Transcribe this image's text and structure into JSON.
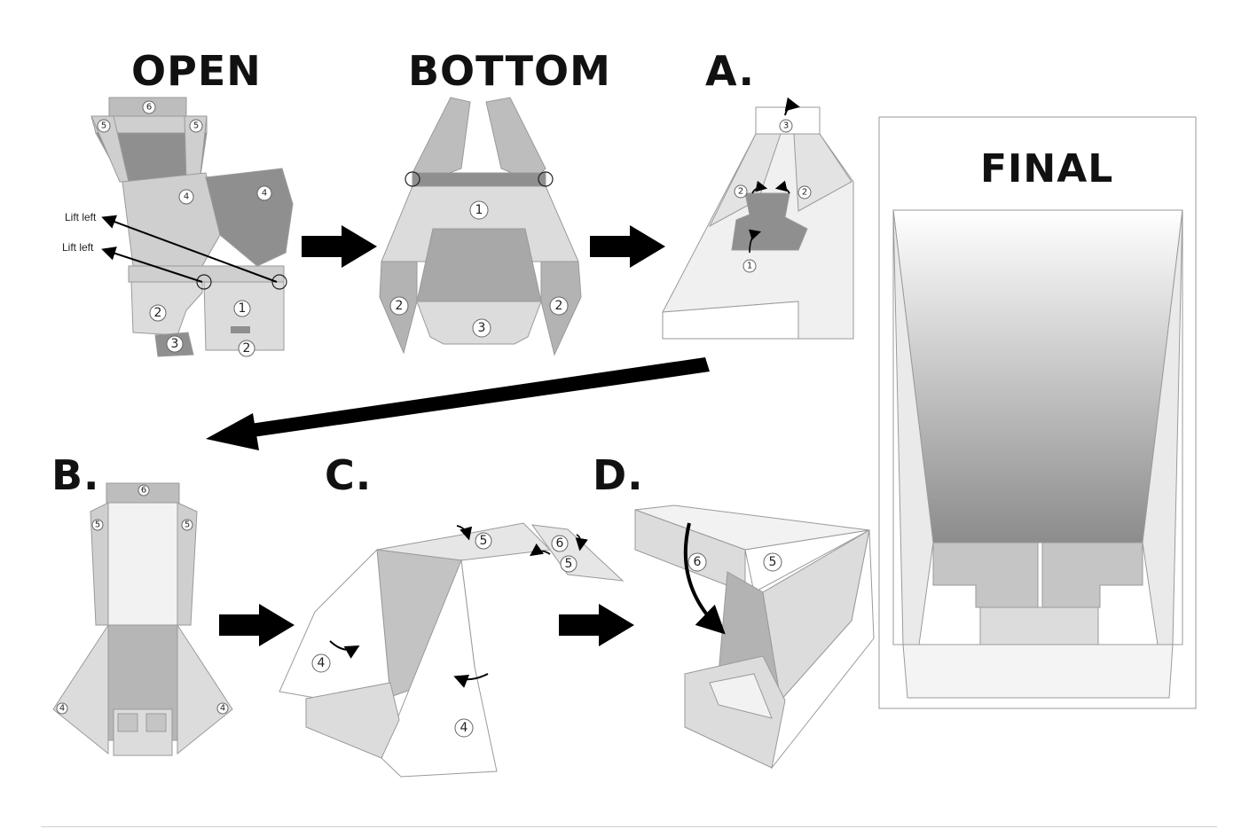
{
  "steps": {
    "open": "OPEN",
    "bottom": "BOTTOM",
    "a": "A.",
    "b": "B.",
    "c": "C.",
    "d": "D.",
    "final": "FINAL"
  },
  "annotations": {
    "lift_left_1": "Lift left",
    "lift_left_2": "Lift left"
  },
  "panel_numbers": {
    "n1": "1",
    "n2": "2",
    "n3": "3",
    "n4": "4",
    "n5": "5",
    "n6": "6"
  },
  "colors": {
    "dark_gray": "#8f8f90",
    "mid_gray": "#b3b3b4",
    "light_gray": "#dcdcdd",
    "outline": "#9a9a9a",
    "arrow": "#000000"
  }
}
